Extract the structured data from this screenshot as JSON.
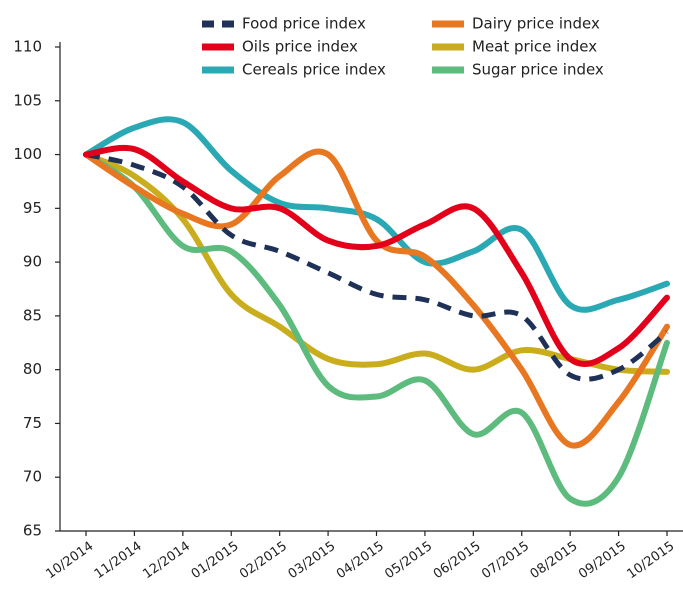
{
  "chart_data": {
    "type": "line",
    "categories": [
      "10/2014",
      "11/2014",
      "12/2014",
      "01/2015",
      "02/2015",
      "03/2015",
      "04/2015",
      "05/2015",
      "06/2015",
      "07/2015",
      "08/2015",
      "09/2015",
      "10/2015"
    ],
    "series": [
      {
        "name": "Food price index",
        "color": "#1f3157",
        "dashed": true,
        "values": [
          100,
          99,
          97,
          92.5,
          91,
          89,
          87,
          86.5,
          85,
          85,
          79.5,
          80,
          83.5
        ]
      },
      {
        "name": "Dairy price index",
        "color": "#e87722",
        "values": [
          100,
          97,
          94.5,
          93.5,
          98,
          100,
          92,
          90.5,
          86,
          80,
          73,
          77,
          84
        ]
      },
      {
        "name": "Oils price index",
        "color": "#e2001a",
        "values": [
          100,
          100.5,
          97.5,
          95,
          95,
          92,
          91.5,
          93.5,
          95,
          89,
          81,
          82,
          86.7
        ]
      },
      {
        "name": "Meat price index",
        "color": "#c9ad1c",
        "values": [
          100,
          98,
          94,
          87,
          84,
          81,
          80.5,
          81.5,
          80,
          81.8,
          81,
          80,
          79.8
        ]
      },
      {
        "name": "Cereals price index",
        "color": "#2aa9b4",
        "values": [
          100,
          102.5,
          103,
          98.5,
          95.5,
          95,
          94,
          90,
          91,
          93,
          86,
          86.5,
          88
        ]
      },
      {
        "name": "Sugar price index",
        "color": "#5dbb7e",
        "values": [
          100,
          97,
          91.5,
          91,
          86,
          78.5,
          77.5,
          79,
          74,
          76,
          68,
          70,
          82.5
        ]
      }
    ],
    "ylim": [
      65,
      110
    ],
    "yticks": [
      65,
      70,
      75,
      80,
      85,
      90,
      95,
      100,
      105,
      110
    ],
    "grid": false,
    "legend": "top"
  }
}
